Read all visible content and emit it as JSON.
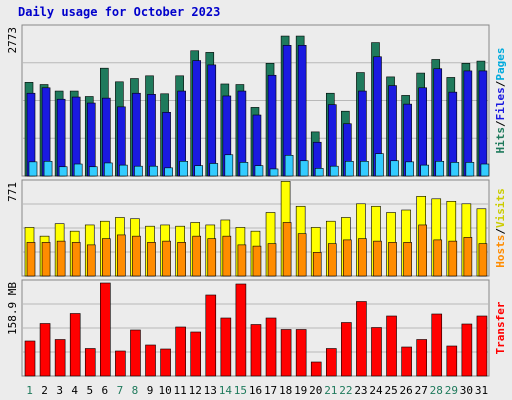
{
  "title": "Daily usage for October 2023",
  "chart_data": [
    {
      "type": "bar",
      "name_panel": "hits-files-pages",
      "y_max_label": "2773",
      "ylim": [
        0,
        2773
      ],
      "right_labels": [
        "Hits",
        "Files",
        "Pages"
      ],
      "colors": {
        "hits": "#1f7a5c",
        "files": "#1a1ae0",
        "pages": "#33ccff"
      },
      "categories": [
        "1",
        "2",
        "3",
        "4",
        "5",
        "6",
        "7",
        "8",
        "9",
        "10",
        "11",
        "12",
        "13",
        "14",
        "15",
        "16",
        "17",
        "18",
        "19",
        "20",
        "21",
        "22",
        "23",
        "24",
        "25",
        "26",
        "27",
        "28",
        "29",
        "30",
        "31"
      ],
      "series": [
        {
          "name": "Hits",
          "values": [
            1720,
            1680,
            1560,
            1560,
            1460,
            1980,
            1730,
            1790,
            1840,
            1510,
            1840,
            2300,
            2270,
            1690,
            1680,
            1260,
            2070,
            2570,
            2570,
            810,
            1520,
            1190,
            1900,
            2450,
            1820,
            1480,
            1890,
            2140,
            1810,
            2070,
            2110
          ]
        },
        {
          "name": "Files",
          "values": [
            1520,
            1620,
            1410,
            1450,
            1340,
            1430,
            1270,
            1520,
            1500,
            1170,
            1560,
            2120,
            2040,
            1470,
            1560,
            1120,
            1850,
            2400,
            2400,
            620,
            1310,
            960,
            1560,
            2190,
            1660,
            1320,
            1620,
            1970,
            1540,
            1930,
            1930
          ]
        },
        {
          "name": "Pages",
          "values": [
            260,
            270,
            170,
            220,
            170,
            240,
            200,
            180,
            180,
            150,
            270,
            190,
            230,
            390,
            250,
            190,
            130,
            380,
            280,
            140,
            180,
            270,
            270,
            410,
            280,
            260,
            200,
            270,
            250,
            250,
            220
          ]
        }
      ]
    },
    {
      "type": "bar",
      "name_panel": "visits-sites",
      "y_max_label": "771",
      "ylim": [
        0,
        771
      ],
      "right_labels": [
        "Visits",
        "Hosts"
      ],
      "colors": {
        "visits": "#ffff00",
        "hosts": "#ff8c00"
      },
      "categories": [
        "1",
        "2",
        "3",
        "4",
        "5",
        "6",
        "7",
        "8",
        "9",
        "10",
        "11",
        "12",
        "13",
        "14",
        "15",
        "16",
        "17",
        "18",
        "19",
        "20",
        "21",
        "22",
        "23",
        "24",
        "25",
        "26",
        "27",
        "28",
        "29",
        "30",
        "31"
      ],
      "series": [
        {
          "name": "Visits",
          "values": [
            390,
            320,
            420,
            360,
            410,
            440,
            470,
            460,
            400,
            410,
            400,
            430,
            410,
            450,
            390,
            360,
            510,
            760,
            560,
            390,
            440,
            470,
            580,
            560,
            510,
            530,
            640,
            620,
            600,
            580,
            540
          ]
        },
        {
          "name": "Hosts",
          "values": [
            270,
            270,
            280,
            270,
            250,
            300,
            330,
            320,
            270,
            280,
            270,
            320,
            300,
            320,
            250,
            240,
            260,
            430,
            340,
            190,
            260,
            290,
            300,
            280,
            270,
            270,
            410,
            290,
            280,
            310,
            260
          ]
        }
      ]
    },
    {
      "type": "bar",
      "name_panel": "transfer",
      "y_max_label": "158.9 MB",
      "ylim": [
        0,
        192
      ],
      "right_labels": [
        "Transfer"
      ],
      "colors": {
        "transfer": "#ff0000"
      },
      "categories": [
        "1",
        "2",
        "3",
        "4",
        "5",
        "6",
        "7",
        "8",
        "9",
        "10",
        "11",
        "12",
        "13",
        "14",
        "15",
        "16",
        "17",
        "18",
        "19",
        "20",
        "21",
        "22",
        "23",
        "24",
        "25",
        "26",
        "27",
        "28",
        "29",
        "30",
        "31"
      ],
      "series": [
        {
          "name": "Transfer",
          "values": [
            70,
            105,
            73,
            125,
            55,
            186,
            50,
            92,
            62,
            54,
            98,
            88,
            162,
            116,
            184,
            103,
            116,
            93,
            93,
            28,
            55,
            107,
            149,
            97,
            120,
            58,
            73,
            124,
            60,
            104,
            120
          ]
        }
      ]
    }
  ],
  "highlight_days": [
    "1",
    "7",
    "8",
    "14",
    "15",
    "21",
    "22",
    "28",
    "29"
  ],
  "day_colors": {
    "weekend": "#1f7a5c",
    "weekday": "#000000"
  }
}
